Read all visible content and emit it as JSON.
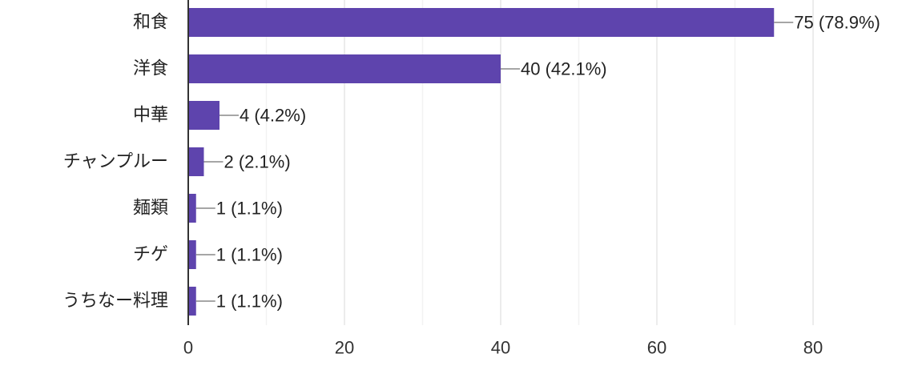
{
  "chart_data": {
    "type": "bar",
    "orientation": "horizontal",
    "categories": [
      "和食",
      "洋食",
      "中華",
      "チャンプルー",
      "麺類",
      "チゲ",
      "うちなー料理"
    ],
    "values": [
      75,
      40,
      4,
      2,
      1,
      1,
      1
    ],
    "value_labels": [
      "75 (78.9%)",
      "40 (42.1%)",
      "4 (4.2%)",
      "2 (2.1%)",
      "1 (1.1%)",
      "1 (1.1%)",
      "1 (1.1%)"
    ],
    "xlim": [
      0,
      80
    ],
    "xticks": [
      0,
      20,
      40,
      60,
      80
    ],
    "xtick_labels": [
      "0",
      "20",
      "40",
      "60",
      "80"
    ],
    "grid": true,
    "legend": "none",
    "title": "",
    "xlabel": "",
    "ylabel": ""
  },
  "colors": {
    "bar": "#5e44ad",
    "grid": "#e6e6e6",
    "axis": "#333333",
    "leader": "#888888"
  }
}
